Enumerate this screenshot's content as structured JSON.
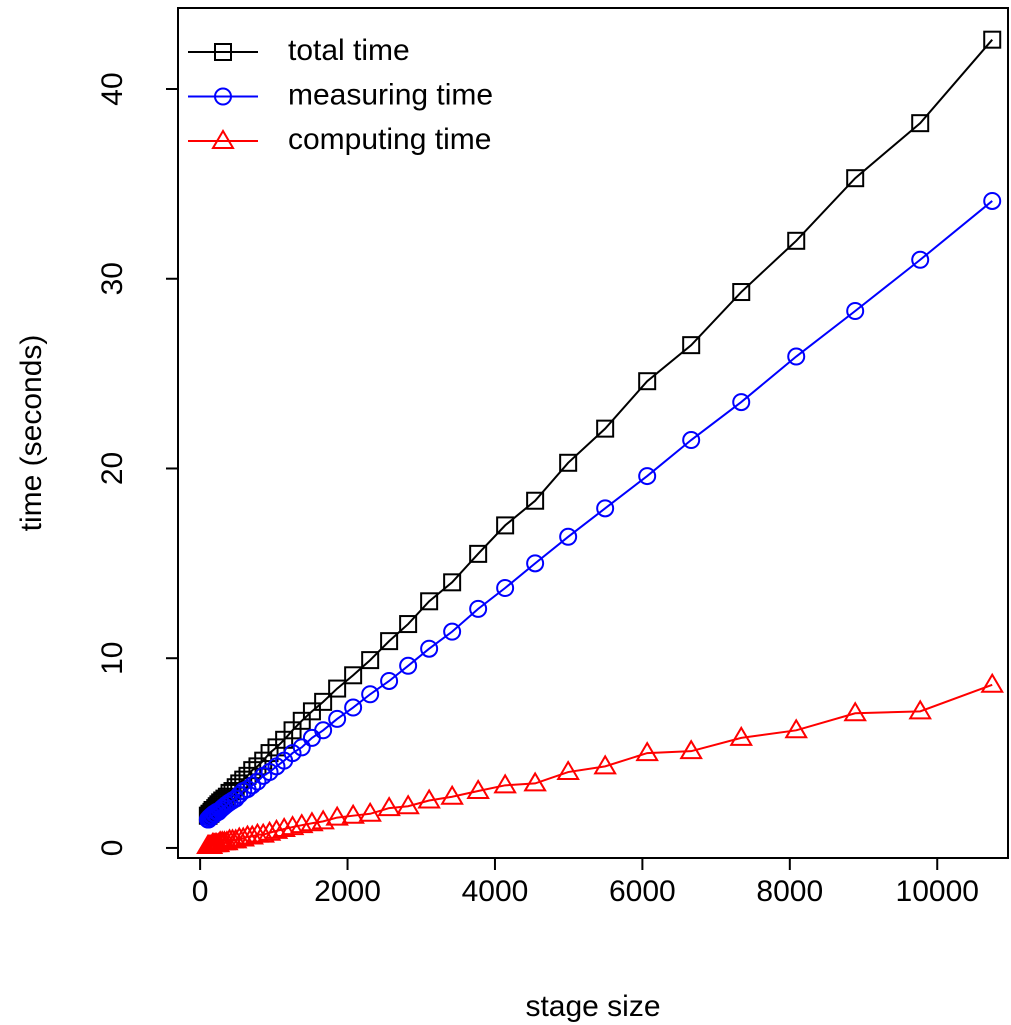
{
  "chart_data": {
    "type": "line",
    "xlabel": "stage size",
    "ylabel": "time (seconds)",
    "x": [
      105,
      115,
      127,
      140,
      154,
      169,
      186,
      205,
      225,
      248,
      272,
      300,
      330,
      363,
      399,
      439,
      483,
      531,
      585,
      643,
      707,
      778,
      856,
      942,
      1036,
      1140,
      1254,
      1379,
      1517,
      1669,
      1859,
      2076,
      2307,
      2564,
      2822,
      3107,
      3419,
      3772,
      4138,
      4545,
      4993,
      5495,
      6065,
      6662,
      7341,
      8087,
      8887,
      9769,
      10746
    ],
    "series": [
      {
        "name": "total time",
        "color": "#000000",
        "marker": "square",
        "values": [
          1.7,
          1.7,
          1.8,
          1.8,
          1.9,
          2.0,
          2.0,
          2.1,
          2.2,
          2.3,
          2.4,
          2.5,
          2.6,
          2.7,
          2.9,
          3.0,
          3.2,
          3.4,
          3.6,
          3.8,
          4.1,
          4.3,
          4.6,
          5.0,
          5.3,
          5.7,
          6.2,
          6.7,
          7.2,
          7.7,
          8.4,
          9.1,
          9.9,
          10.9,
          11.8,
          13.0,
          14.0,
          15.5,
          17.0,
          18.3,
          20.3,
          22.1,
          24.6,
          26.5,
          29.3,
          32.0,
          35.3,
          38.2,
          42.6
        ]
      },
      {
        "name": "measuring time",
        "color": "#0000ff",
        "marker": "circle",
        "values": [
          1.5,
          1.5,
          1.6,
          1.6,
          1.7,
          1.7,
          1.8,
          1.8,
          1.9,
          1.9,
          2.0,
          2.1,
          2.2,
          2.3,
          2.4,
          2.5,
          2.6,
          2.8,
          3.0,
          3.1,
          3.3,
          3.5,
          3.8,
          4.0,
          4.3,
          4.6,
          5.0,
          5.3,
          5.8,
          6.2,
          6.8,
          7.4,
          8.1,
          8.8,
          9.6,
          10.5,
          11.4,
          12.6,
          13.7,
          15.0,
          16.4,
          17.9,
          19.6,
          21.5,
          23.5,
          25.9,
          28.3,
          31.0,
          34.1
        ]
      },
      {
        "name": "computing time",
        "color": "#ff0000",
        "marker": "triangle",
        "values": [
          0.1,
          0.1,
          0.1,
          0.1,
          0.1,
          0.2,
          0.2,
          0.2,
          0.2,
          0.2,
          0.3,
          0.3,
          0.3,
          0.3,
          0.4,
          0.4,
          0.4,
          0.5,
          0.5,
          0.6,
          0.6,
          0.7,
          0.7,
          0.8,
          0.9,
          1.0,
          1.1,
          1.2,
          1.3,
          1.4,
          1.6,
          1.7,
          1.8,
          2.1,
          2.2,
          2.5,
          2.7,
          3.0,
          3.3,
          3.4,
          4.0,
          4.3,
          5.0,
          5.1,
          5.8,
          6.2,
          7.1,
          7.2,
          8.6
        ]
      }
    ],
    "xlim": [
      -300,
      10960
    ],
    "xticks": [
      0,
      2000,
      4000,
      6000,
      8000,
      10000
    ],
    "ylim": [
      -0.53,
      44.27
    ],
    "yticks": [
      0,
      10,
      20,
      30,
      40
    ],
    "legend_position": "topleft"
  }
}
